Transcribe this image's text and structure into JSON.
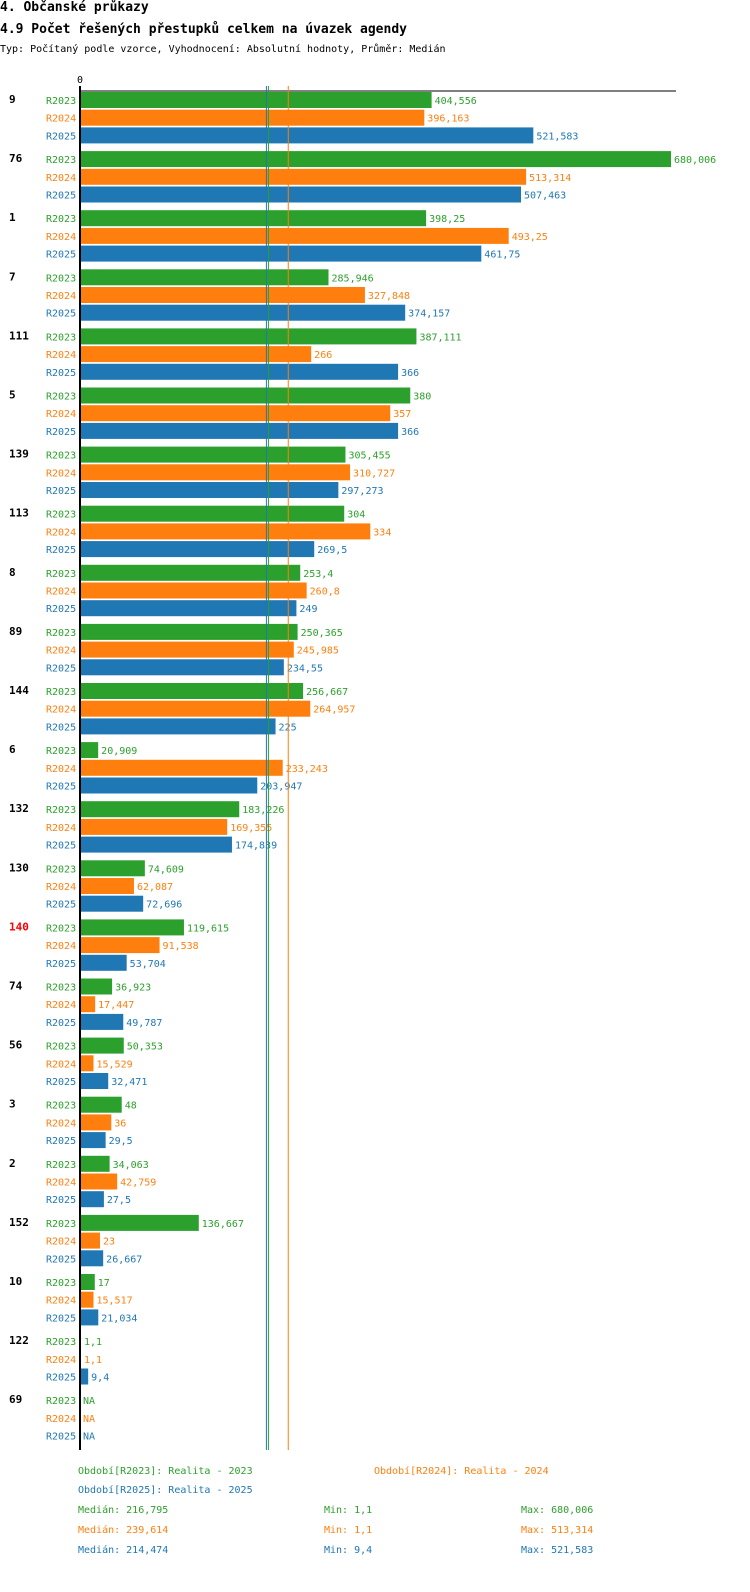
{
  "header": {
    "section": "4. Občanské průkazy",
    "title": "4.9 Počet řešených přestupků celkem na úvazek agendy",
    "subtitle": "Typ: Počítaný podle vzorce, Vyhodnocení: Absolutní hodnoty, Průměr: Medián"
  },
  "colors": {
    "R2023": "#2ca02c",
    "R2024": "#ff7f0e",
    "R2025": "#1f77b4",
    "highlight": "#ff0000"
  },
  "chart_data": {
    "type": "bar",
    "orientation": "horizontal",
    "axis_zero_label": "0",
    "xlim": [
      0,
      680.006
    ],
    "series_names": [
      "R2023",
      "R2024",
      "R2025"
    ],
    "highlighted_category": "140",
    "groups": [
      {
        "id": "9",
        "values": [
          404.556,
          396.163,
          521.583
        ],
        "labels": [
          "404,556",
          "396,163",
          "521,583"
        ]
      },
      {
        "id": "76",
        "values": [
          680.006,
          513.314,
          507.463
        ],
        "labels": [
          "680,006",
          "513,314",
          "507,463"
        ]
      },
      {
        "id": "1",
        "values": [
          398.25,
          493.25,
          461.75
        ],
        "labels": [
          "398,25",
          "493,25",
          "461,75"
        ]
      },
      {
        "id": "7",
        "values": [
          285.946,
          327.848,
          374.157
        ],
        "labels": [
          "285,946",
          "327,848",
          "374,157"
        ]
      },
      {
        "id": "111",
        "values": [
          387.111,
          266,
          366
        ],
        "labels": [
          "387,111",
          "266",
          "366"
        ]
      },
      {
        "id": "5",
        "values": [
          380,
          357,
          366
        ],
        "labels": [
          "380",
          "357",
          "366"
        ]
      },
      {
        "id": "139",
        "values": [
          305.455,
          310.727,
          297.273
        ],
        "labels": [
          "305,455",
          "310,727",
          "297,273"
        ]
      },
      {
        "id": "113",
        "values": [
          304,
          334,
          269.5
        ],
        "labels": [
          "304",
          "334",
          "269,5"
        ]
      },
      {
        "id": "8",
        "values": [
          253.4,
          260.8,
          249
        ],
        "labels": [
          "253,4",
          "260,8",
          "249"
        ]
      },
      {
        "id": "89",
        "values": [
          250.365,
          245.985,
          234.55
        ],
        "labels": [
          "250,365",
          "245,985",
          "234,55"
        ]
      },
      {
        "id": "144",
        "values": [
          256.667,
          264.957,
          225
        ],
        "labels": [
          "256,667",
          "264,957",
          "225"
        ]
      },
      {
        "id": "6",
        "values": [
          20.909,
          233.243,
          203.947
        ],
        "labels": [
          "20,909",
          "233,243",
          "203,947"
        ]
      },
      {
        "id": "132",
        "values": [
          183.226,
          169.355,
          174.839
        ],
        "labels": [
          "183,226",
          "169,355",
          "174,839"
        ]
      },
      {
        "id": "130",
        "values": [
          74.609,
          62.087,
          72.696
        ],
        "labels": [
          "74,609",
          "62,087",
          "72,696"
        ]
      },
      {
        "id": "140",
        "values": [
          119.615,
          91.538,
          53.704
        ],
        "labels": [
          "119,615",
          "91,538",
          "53,704"
        ]
      },
      {
        "id": "74",
        "values": [
          36.923,
          17.447,
          49.787
        ],
        "labels": [
          "36,923",
          "17,447",
          "49,787"
        ]
      },
      {
        "id": "56",
        "values": [
          50.353,
          15.529,
          32.471
        ],
        "labels": [
          "50,353",
          "15,529",
          "32,471"
        ]
      },
      {
        "id": "3",
        "values": [
          48,
          36,
          29.5
        ],
        "labels": [
          "48",
          "36",
          "29,5"
        ]
      },
      {
        "id": "2",
        "values": [
          34.063,
          42.759,
          27.5
        ],
        "labels": [
          "34,063",
          "42,759",
          "27,5"
        ]
      },
      {
        "id": "152",
        "values": [
          136.667,
          23,
          26.667
        ],
        "labels": [
          "136,667",
          "23",
          "26,667"
        ]
      },
      {
        "id": "10",
        "values": [
          17,
          15.517,
          21.034
        ],
        "labels": [
          "17",
          "15,517",
          "21,034"
        ]
      },
      {
        "id": "122",
        "values": [
          1.1,
          1.1,
          9.4
        ],
        "labels": [
          "1,1",
          "1,1",
          "9,4"
        ]
      },
      {
        "id": "69",
        "values": [
          null,
          null,
          null
        ],
        "labels": [
          "NA",
          "NA",
          "NA"
        ]
      }
    ],
    "medians": [
      216.795,
      239.614,
      214.474
    ]
  },
  "legend": {
    "period_r2023": "Období[R2023]: Realita - 2023",
    "period_r2024": "Období[R2024]: Realita - 2024",
    "period_r2025": "Období[R2025]: Realita - 2025",
    "stats": [
      {
        "median": "Medián: 216,795",
        "min": "Min: 1,1",
        "max": "Max: 680,006"
      },
      {
        "median": "Medián: 239,614",
        "min": "Min: 1,1",
        "max": "Max: 513,314"
      },
      {
        "median": "Medián: 214,474",
        "min": "Min: 9,4",
        "max": "Max: 521,583"
      }
    ]
  }
}
